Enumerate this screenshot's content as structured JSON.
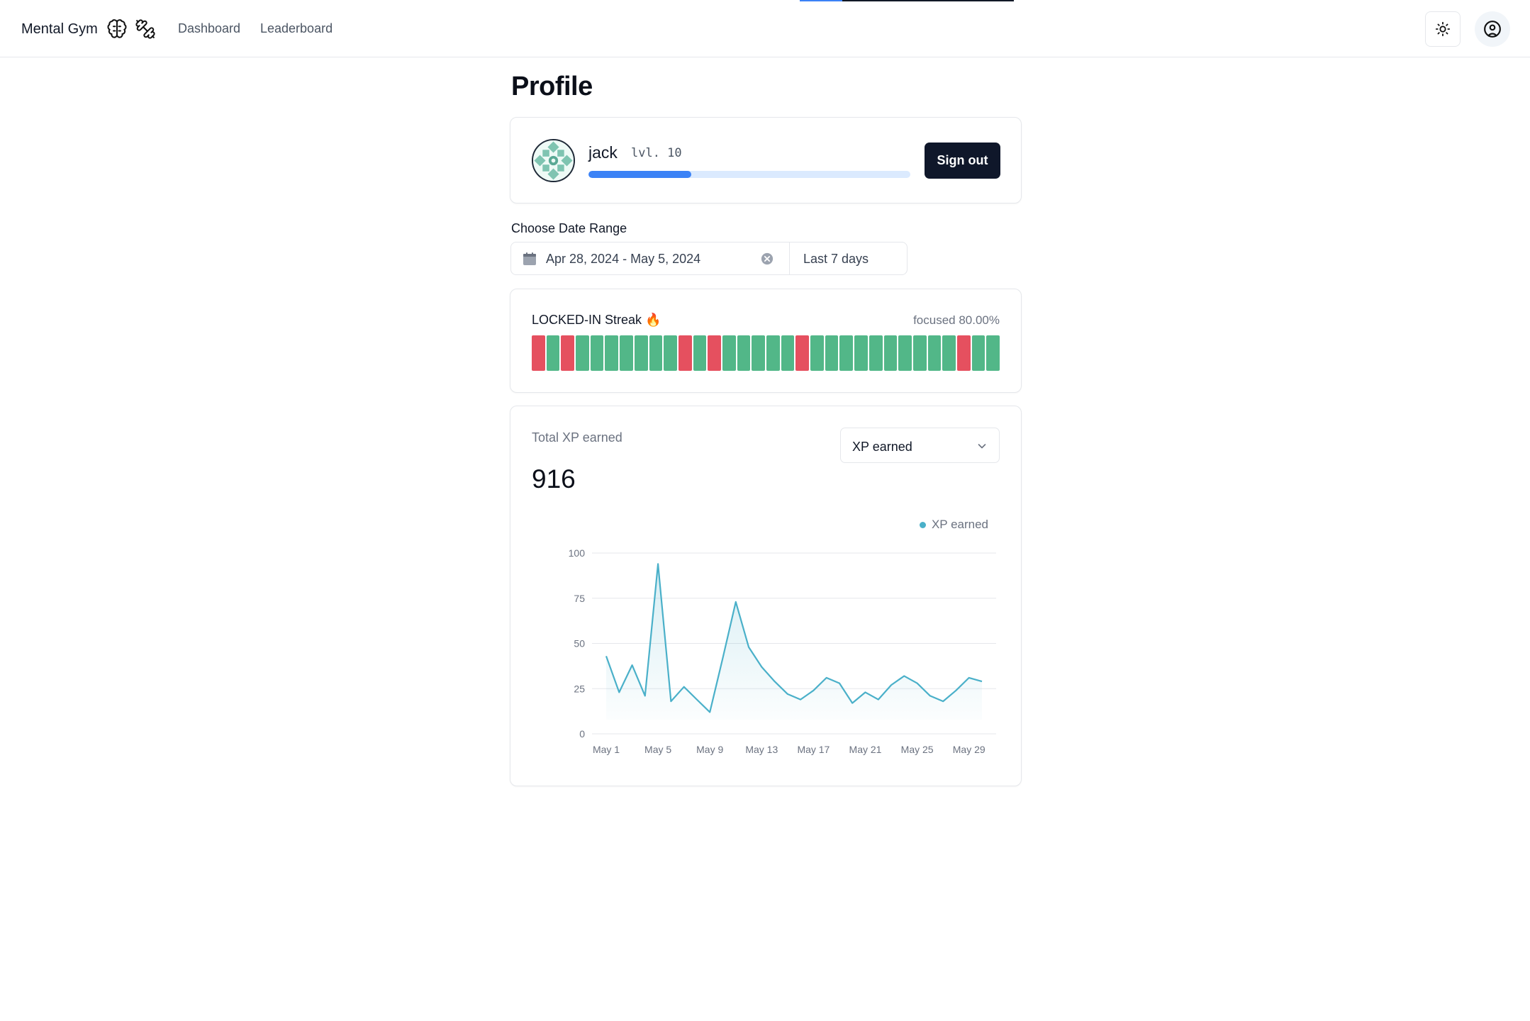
{
  "header": {
    "brand": "Mental Gym",
    "nav": [
      {
        "label": "Dashboard"
      },
      {
        "label": "Leaderboard"
      }
    ]
  },
  "profile": {
    "title": "Profile",
    "username": "jack",
    "level": "lvl. 10",
    "xp_progress": 0.32,
    "signout_label": "Sign out"
  },
  "date_range": {
    "label": "Choose Date Range",
    "value": "Apr 28, 2024 - May 5, 2024",
    "preset": "Last 7 days"
  },
  "streak": {
    "title": "LOCKED-IN Streak 🔥",
    "focus": "focused 80.00%",
    "days": [
      "off",
      "on",
      "off",
      "on",
      "on",
      "on",
      "on",
      "on",
      "on",
      "on",
      "off",
      "on",
      "off",
      "on",
      "on",
      "on",
      "on",
      "on",
      "off",
      "on",
      "on",
      "on",
      "on",
      "on",
      "on",
      "on",
      "on",
      "on",
      "on",
      "off",
      "on",
      "on"
    ],
    "colors": {
      "on": "#52b788",
      "off": "#e5505f"
    }
  },
  "xp": {
    "label": "Total XP earned",
    "total": "916",
    "select_value": "XP earned"
  },
  "chart_data": {
    "type": "area",
    "series": [
      {
        "name": "XP earned",
        "color": "#4ab0c9",
        "values": [
          43,
          23,
          38,
          21,
          94,
          18,
          26,
          19,
          12,
          42,
          73,
          48,
          37,
          29,
          22,
          19,
          24,
          31,
          28,
          17,
          23,
          19,
          27,
          32,
          28,
          21,
          18,
          24,
          31,
          29
        ]
      }
    ],
    "x": [
      "May 1",
      "May 2",
      "May 3",
      "May 4",
      "May 5",
      "May 6",
      "May 7",
      "May 8",
      "May 9",
      "May 10",
      "May 11",
      "May 12",
      "May 13",
      "May 14",
      "May 15",
      "May 16",
      "May 17",
      "May 18",
      "May 19",
      "May 20",
      "May 21",
      "May 22",
      "May 23",
      "May 24",
      "May 25",
      "May 26",
      "May 27",
      "May 28",
      "May 29",
      "May 30"
    ],
    "xticks": [
      "May 1",
      "May 5",
      "May 9",
      "May 13",
      "May 17",
      "May 21",
      "May 25",
      "May 29"
    ],
    "yticks": [
      "0",
      "25",
      "50",
      "75",
      "100"
    ],
    "ylim": [
      0,
      100
    ],
    "grid": true,
    "legend": "top-right"
  }
}
